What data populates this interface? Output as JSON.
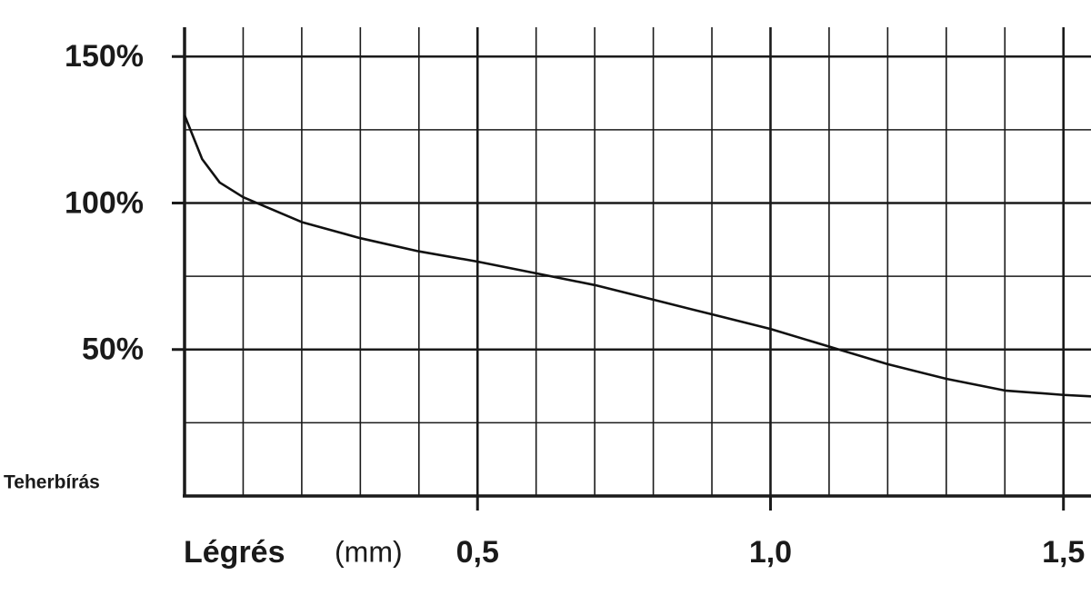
{
  "chart_data": {
    "type": "line",
    "xlabel": "Légrés",
    "xlabel_unit": "(mm)",
    "ylabel": "Teherbírás",
    "x": [
      0,
      0.03,
      0.06,
      0.1,
      0.2,
      0.3,
      0.4,
      0.5,
      0.6,
      0.7,
      0.8,
      0.9,
      1.0,
      1.1,
      1.2,
      1.3,
      1.4,
      1.5,
      1.547
    ],
    "values": [
      130,
      115,
      107,
      102,
      93.5,
      88,
      83.5,
      80,
      76,
      72,
      67,
      62,
      57,
      51,
      45,
      40,
      36,
      34.5,
      34
    ],
    "color": "#111111",
    "xlim": [
      0,
      1.547
    ],
    "ylim": [
      0,
      160
    ],
    "xticks": [
      {
        "value": 0.5,
        "label": "0,5"
      },
      {
        "value": 1.0,
        "label": "1,0"
      },
      {
        "value": 1.5,
        "label": "1,5"
      }
    ],
    "xminorticks": [
      0.1,
      0.2,
      0.3,
      0.4,
      0.6,
      0.7,
      0.8,
      0.9,
      1.1,
      1.2,
      1.3,
      1.4
    ],
    "yticks": [
      {
        "value": 50,
        "label": "50%"
      },
      {
        "value": 100,
        "label": "100%"
      },
      {
        "value": 150,
        "label": "150%"
      }
    ],
    "yminorticks": [
      25,
      75,
      125
    ],
    "grid": true
  }
}
